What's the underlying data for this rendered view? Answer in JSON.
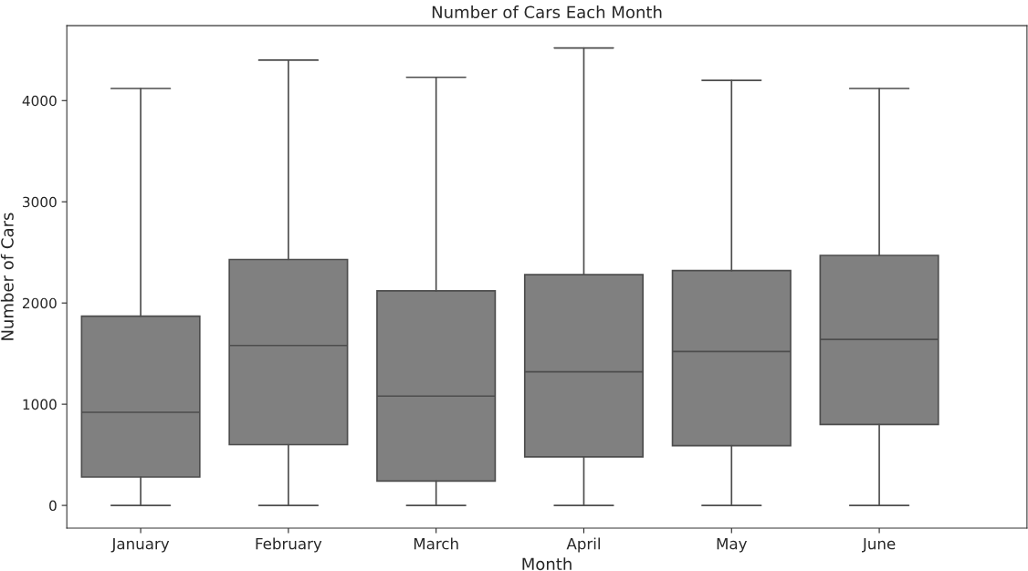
{
  "chart_data": {
    "type": "box",
    "title": "Number of Cars Each Month",
    "xlabel": "Month",
    "ylabel": "Number of Cars",
    "categories": [
      "January",
      "February",
      "March",
      "April",
      "May",
      "June"
    ],
    "boxes": [
      {
        "low": 0,
        "q1": 280,
        "median": 920,
        "q3": 1870,
        "high": 4120
      },
      {
        "low": 0,
        "q1": 600,
        "median": 1580,
        "q3": 2430,
        "high": 4400
      },
      {
        "low": 0,
        "q1": 240,
        "median": 1080,
        "q3": 2120,
        "high": 4230
      },
      {
        "low": 0,
        "q1": 480,
        "median": 1320,
        "q3": 2280,
        "high": 4520
      },
      {
        "low": 0,
        "q1": 590,
        "median": 1520,
        "q3": 2320,
        "high": 4200
      },
      {
        "low": 0,
        "q1": 800,
        "median": 1640,
        "q3": 2470,
        "high": 4120
      }
    ],
    "color": "#808080",
    "ylim": [
      -225,
      4740
    ],
    "yticks": [
      0,
      1000,
      2000,
      3000,
      4000
    ],
    "grid": false
  }
}
